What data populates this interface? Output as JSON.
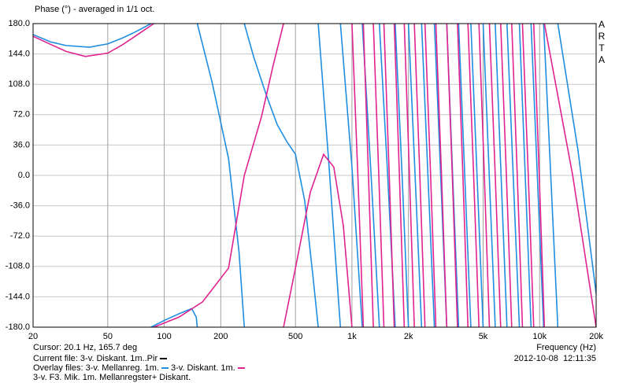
{
  "chart_data": {
    "type": "line",
    "title": "Phase (°) - averaged in 1/1 oct.",
    "logo": "ARTA",
    "x_label": "Frequency (Hz)",
    "cursor": "Cursor: 20.1 Hz, 165.7 deg",
    "current_file": "Current file: 3-v. Diskant. 1m..Pir",
    "current_file_color": "#000000",
    "overlay_label": "Overlay files:",
    "footer_line": "3-v. F3. Mik. 1m. Mellanregster+ Diskant.",
    "timestamp": "2012-10-08  12:11:35",
    "xscale": "log",
    "grid": true,
    "xlim": [
      20,
      20000
    ],
    "ylim": [
      -180,
      180
    ],
    "xticks": [
      20,
      50,
      100,
      200,
      500,
      {
        "value": 1000,
        "label": "1k"
      },
      {
        "value": 2000,
        "label": "2k"
      },
      {
        "value": 5000,
        "label": "5k"
      },
      {
        "value": 10000,
        "label": "10k"
      },
      {
        "value": 20000,
        "label": "20k"
      }
    ],
    "yticks": [
      {
        "value": 180,
        "label": "180.0"
      },
      {
        "value": 144,
        "label": "144.0"
      },
      {
        "value": 108,
        "label": "108.0"
      },
      {
        "value": 72,
        "label": "72.0"
      },
      {
        "value": 36,
        "label": "36.0"
      },
      {
        "value": 0,
        "label": "0.0"
      },
      {
        "value": -36,
        "label": "-36.0"
      },
      {
        "value": -72,
        "label": "-72.0"
      },
      {
        "value": -108,
        "label": "-108.0"
      },
      {
        "value": -144,
        "label": "-144.0"
      },
      {
        "value": -180,
        "label": "-180.0"
      }
    ],
    "series": [
      {
        "name": "3-v. Mellanreg. 1m.",
        "color": "#1f8ee0",
        "x": [
          20,
          25,
          30,
          40,
          50,
          60,
          70,
          85,
          85,
          85,
          100,
          120,
          140,
          148,
          150,
          150,
          150,
          180,
          220,
          250,
          267,
          267,
          267,
          300,
          350,
          400,
          450,
          500,
          560,
          620,
          661,
          661,
          661,
          750,
          868,
          868,
          868,
          1000,
          1135,
          1135,
          1135,
          1265,
          1400,
          1400,
          1400,
          1550,
          1700,
          1700,
          1700,
          1850,
          2000,
          2000,
          2000,
          2170,
          2350,
          2350,
          2350,
          2540,
          2750,
          2750,
          2750,
          2970,
          3200,
          3200,
          3200,
          3440,
          3700,
          3700,
          3700,
          3990,
          4300,
          4300,
          4300,
          4640,
          5000,
          5000,
          5000,
          5390,
          5800,
          5800,
          5800,
          6230,
          6700,
          6700,
          6700,
          7230,
          7800,
          7800,
          7800,
          8380,
          9000,
          9000,
          9000,
          9720,
          10500,
          10500,
          10500,
          11460,
          12500,
          12500,
          12500,
          16000,
          20000
        ],
        "values": [
          167,
          158,
          154,
          152,
          156,
          163,
          170,
          180,
          null,
          -180,
          -172,
          -164,
          -158,
          -168,
          -180,
          null,
          180,
          110,
          20,
          -90,
          -180,
          null,
          180,
          140,
          95,
          60,
          40,
          25,
          -30,
          -120,
          -180,
          null,
          180,
          20,
          -180,
          null,
          180,
          10,
          -180,
          null,
          180,
          0,
          -180,
          null,
          180,
          0,
          -180,
          null,
          180,
          0,
          -180,
          null,
          180,
          0,
          -180,
          null,
          180,
          0,
          -180,
          null,
          180,
          0,
          -180,
          null,
          180,
          0,
          -180,
          null,
          180,
          0,
          -180,
          null,
          180,
          0,
          -180,
          null,
          180,
          0,
          -180,
          null,
          180,
          0,
          -180,
          null,
          180,
          0,
          -180,
          null,
          180,
          0,
          -180,
          null,
          180,
          0,
          -180,
          null,
          180,
          0,
          -180,
          null,
          180,
          30,
          -140
        ]
      },
      {
        "name": "3-v. Diskant. 1m.",
        "color": "#e0238f",
        "x": [
          20,
          25,
          30,
          38,
          50,
          60,
          70,
          88,
          88,
          88,
          120,
          160,
          220,
          267,
          330,
          380,
          432,
          432,
          432,
          500,
          600,
          706,
          800,
          900,
          1000,
          1000,
          1000,
          1075,
          1150,
          1150,
          1150,
          1225,
          1300,
          1300,
          1300,
          1390,
          1480,
          1480,
          1480,
          1580,
          1680,
          1680,
          1680,
          1790,
          1900,
          1900,
          1900,
          2025,
          2150,
          2150,
          2150,
          2300,
          2450,
          2450,
          2450,
          2625,
          2800,
          2800,
          2800,
          3000,
          3200,
          3200,
          3200,
          3425,
          3650,
          3650,
          3650,
          3900,
          4150,
          4150,
          4150,
          4450,
          4750,
          4750,
          4750,
          5075,
          5400,
          5400,
          5400,
          5800,
          6200,
          6200,
          6200,
          6650,
          7100,
          7100,
          7100,
          7600,
          8100,
          8100,
          8100,
          8700,
          9300,
          9300,
          9300,
          9950,
          10600,
          10600,
          10600,
          15000,
          20000
        ],
        "values": [
          165,
          155,
          147,
          141,
          145,
          155,
          165,
          180,
          null,
          -180,
          -168,
          -150,
          -110,
          0,
          70,
          130,
          180,
          null,
          -180,
          -110,
          -20,
          25,
          10,
          -60,
          -180,
          null,
          180,
          0,
          -180,
          null,
          180,
          0,
          -180,
          null,
          180,
          0,
          -180,
          null,
          180,
          0,
          -180,
          null,
          180,
          0,
          -180,
          null,
          180,
          0,
          -180,
          null,
          180,
          0,
          -180,
          null,
          180,
          0,
          -180,
          null,
          180,
          0,
          -180,
          null,
          180,
          0,
          -180,
          null,
          180,
          0,
          -180,
          null,
          180,
          0,
          -180,
          null,
          180,
          0,
          -180,
          null,
          180,
          0,
          -180,
          null,
          180,
          0,
          -180,
          null,
          180,
          0,
          -180,
          null,
          180,
          0,
          -180,
          null,
          180,
          0,
          -180,
          null,
          180,
          0,
          -180
        ]
      }
    ]
  }
}
